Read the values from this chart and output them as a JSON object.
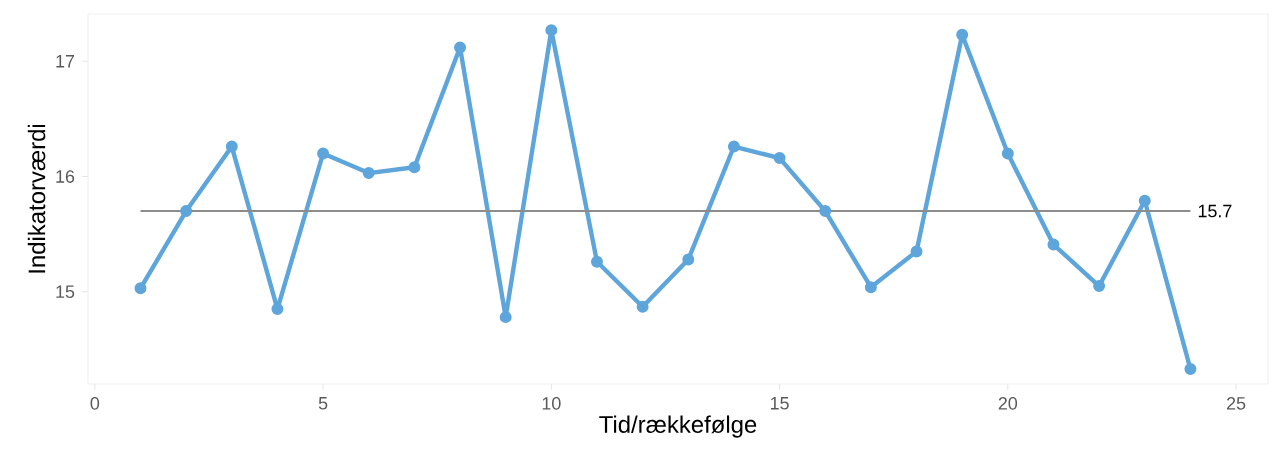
{
  "chart_data": {
    "type": "line",
    "xlabel": "Tid/rækkefølge",
    "ylabel": "Indikatorværdi",
    "x": [
      1,
      2,
      3,
      4,
      5,
      6,
      7,
      8,
      9,
      10,
      11,
      12,
      13,
      14,
      15,
      16,
      17,
      18,
      19,
      20,
      21,
      22,
      23,
      24
    ],
    "series": [
      {
        "color": "#5da5da",
        "values": [
          15.03,
          15.7,
          16.26,
          14.85,
          16.2,
          16.03,
          16.08,
          17.12,
          14.78,
          17.27,
          15.26,
          14.87,
          15.28,
          16.26,
          16.16,
          15.7,
          15.04,
          15.35,
          17.23,
          16.2,
          15.41,
          15.05,
          15.79,
          14.33
        ]
      }
    ],
    "xlim": [
      -0.15,
      25.7
    ],
    "ylim": [
      14.2,
      17.41
    ],
    "xticks": [
      0,
      5,
      10,
      15,
      20,
      25
    ],
    "yticks": [
      15,
      16,
      17
    ],
    "ref_lines": [
      {
        "axis": "y",
        "value": 15.7,
        "label": "15.7",
        "color": "#8c8c8c"
      }
    ],
    "marker": "circle",
    "line_style": "solid"
  }
}
